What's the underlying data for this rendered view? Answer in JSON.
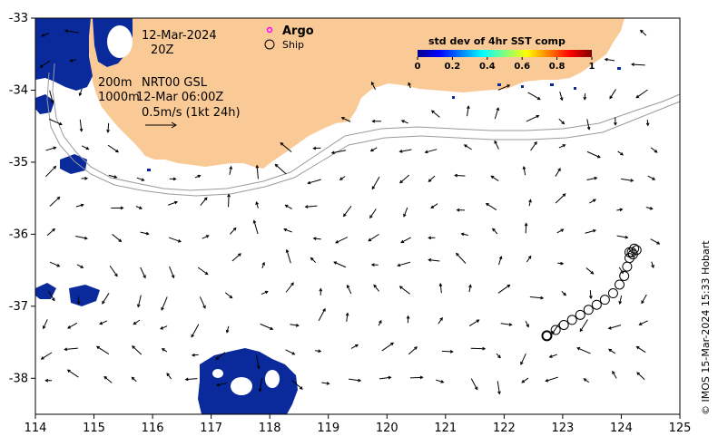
{
  "map": {
    "date": "12-Mar-2024",
    "time": "20Z",
    "depth_label": "200m",
    "depth_label_2": "1000m",
    "product_label": "NRT00 GSL",
    "product_time": "12-Mar 06:00Z",
    "scale_label": "0.5m/s (1kt 24h)",
    "credit": "© IMOS 15-Mar-2024 15:33 Hobart",
    "legend": {
      "argo_label": "Argo",
      "ship_label": "Ship"
    },
    "colorbar": {
      "title": "std dev of 4hr SST comp",
      "ticks": [
        "0",
        "0.2",
        "0.4",
        "0.6",
        "0.8",
        "1"
      ]
    },
    "colors": {
      "land": "#FACA96",
      "sst_patch": "#0A2A9C",
      "argo_marker": "#FF00FF",
      "isobath": "#9A9A9A"
    },
    "x_ticks": [
      "114",
      "115",
      "116",
      "117",
      "118",
      "119",
      "120",
      "121",
      "122",
      "123",
      "124",
      "125"
    ],
    "y_ticks": [
      "-33",
      "-34",
      "-35",
      "-36",
      "-37",
      "-38"
    ],
    "axes": {
      "lon_range": [
        114,
        125
      ],
      "lat_range": [
        -38.5,
        -33
      ]
    },
    "ship_track": [
      [
        122.73,
        -37.41
      ],
      [
        122.88,
        -37.33
      ],
      [
        123.02,
        -37.26
      ],
      [
        123.16,
        -37.19
      ],
      [
        123.3,
        -37.12
      ],
      [
        123.44,
        -37.05
      ],
      [
        123.58,
        -36.98
      ],
      [
        123.72,
        -36.91
      ],
      [
        123.86,
        -36.82
      ],
      [
        123.97,
        -36.7
      ],
      [
        124.05,
        -36.58
      ],
      [
        124.1,
        -36.45
      ],
      [
        124.14,
        -36.33
      ],
      [
        124.18,
        -36.25
      ],
      [
        124.22,
        -36.2
      ],
      [
        124.26,
        -36.22
      ],
      [
        124.2,
        -36.28
      ],
      [
        124.14,
        -36.25
      ]
    ]
  }
}
